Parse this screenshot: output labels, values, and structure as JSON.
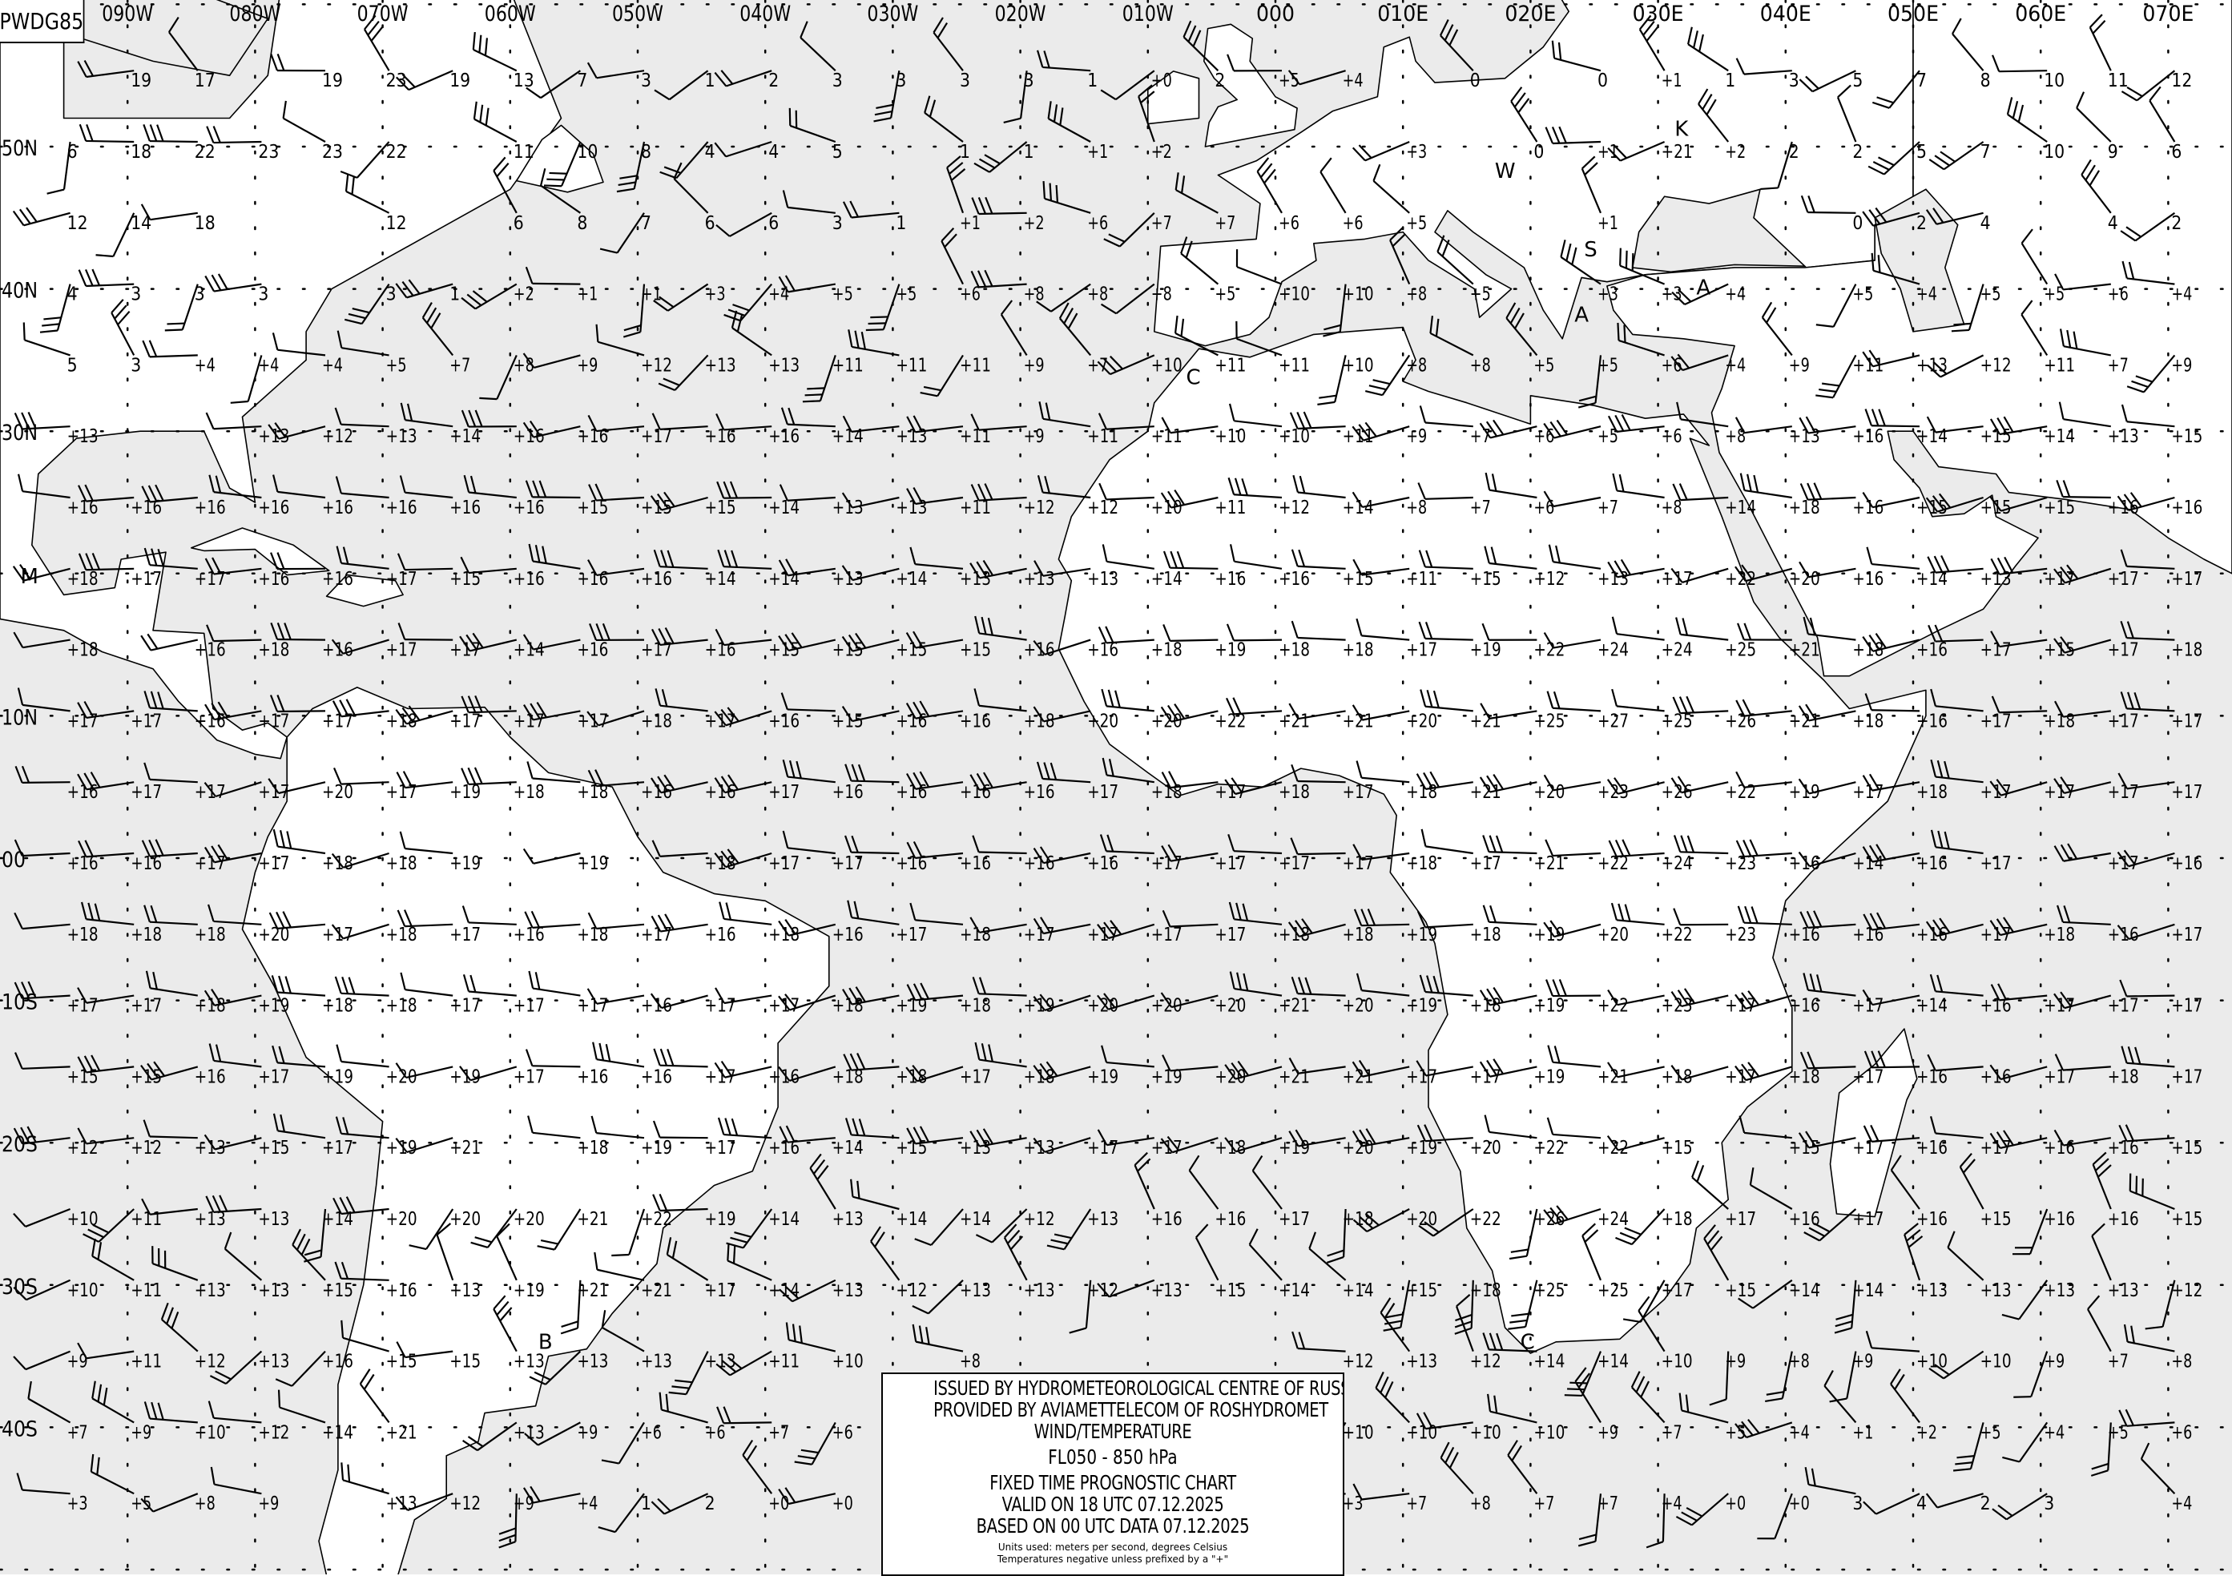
{
  "header": {
    "chart_id": "PWDG85"
  },
  "legend": {
    "line1": "ISSUED BY HYDROMETEOROLOGICAL CENTRE OF RUSSIA",
    "line2": "PROVIDED BY AVIAMETTELECOM OF ROSHYDROMET",
    "line3": "WIND/TEMPERATURE",
    "level": "FL050 - 850 hPa",
    "line5": "FIXED TIME PROGNOSTIC CHART",
    "valid": "VALID ON 18 UTC 07.12.2025",
    "based": "BASED ON 00 UTC DATA 07.12.2025",
    "units": "Units used: meters per second, degrees Celsius",
    "note": "Temperatures negative unless prefixed by a \"+\""
  },
  "colors": {
    "ocean": "#ebebeb",
    "land": "#ffffff",
    "lines": "#000000"
  },
  "lon_labels": [
    {
      "lon": -90,
      "text": "090W"
    },
    {
      "lon": -80,
      "text": "080W"
    },
    {
      "lon": -70,
      "text": "070W"
    },
    {
      "lon": -60,
      "text": "060W"
    },
    {
      "lon": -50,
      "text": "050W"
    },
    {
      "lon": -40,
      "text": "040W"
    },
    {
      "lon": -30,
      "text": "030W"
    },
    {
      "lon": -20,
      "text": "020W"
    },
    {
      "lon": -10,
      "text": "010W"
    },
    {
      "lon": 0,
      "text": "000"
    },
    {
      "lon": 10,
      "text": "010E"
    },
    {
      "lon": 20,
      "text": "020E"
    },
    {
      "lon": 30,
      "text": "030E"
    },
    {
      "lon": 40,
      "text": "040E"
    },
    {
      "lon": 50,
      "text": "050E"
    },
    {
      "lon": 60,
      "text": "060E"
    },
    {
      "lon": 70,
      "text": "070E"
    }
  ],
  "lat_labels": [
    {
      "lat": 50,
      "text": "50N"
    },
    {
      "lat": 40,
      "text": "40N"
    },
    {
      "lat": 30,
      "text": "30N"
    },
    {
      "lat": 10,
      "text": "10N"
    },
    {
      "lat": 0,
      "text": "00"
    },
    {
      "lat": -10,
      "text": "10S"
    },
    {
      "lat": -20,
      "text": "20S"
    },
    {
      "lat": -30,
      "text": "30S"
    },
    {
      "lat": -40,
      "text": "40S"
    }
  ],
  "pressure_centres": [
    {
      "lat": 19.3,
      "lon": -98.4,
      "text": "M"
    },
    {
      "lat": 33.3,
      "lon": -7,
      "text": "C"
    },
    {
      "lat": -34.5,
      "lon": 19.2,
      "text": "C"
    },
    {
      "lat": -35.4,
      "lon": -57.8,
      "text": "B"
    },
    {
      "lat": 42.3,
      "lon": 24.2,
      "text": "S"
    },
    {
      "lat": 39.6,
      "lon": 33,
      "text": "A"
    },
    {
      "lat": 37.7,
      "lon": 24.2,
      "text": "A"
    },
    {
      "lat": 47.8,
      "lon": 17.2,
      "text": "W"
    },
    {
      "lat": 50.3,
      "lon": 31.3,
      "text": "K"
    }
  ],
  "temperature_grid": {
    "lon_start": -95,
    "lon_step": 5,
    "rows": [
      {
        "lat": 55,
        "t": [
          "",
          "19",
          "17",
          "",
          "19",
          "23",
          "19",
          "13",
          "7",
          "3",
          "1",
          "2",
          "3",
          "3",
          "3",
          "3",
          "1",
          "+0",
          "2",
          "+5",
          "+4",
          "",
          "0",
          "",
          "0",
          "+1",
          "1",
          "3",
          "5",
          "7",
          "8",
          "10",
          "11",
          "12"
        ]
      },
      {
        "lat": 50,
        "t": [
          "6",
          "18",
          "22",
          "23",
          "23",
          "22",
          "",
          "11",
          "10",
          "8",
          "4",
          "4",
          "5",
          "",
          "1",
          "1",
          "+1",
          "+2",
          "",
          "",
          "",
          "+3",
          "",
          "0",
          "+1",
          "+21",
          "+2",
          "2",
          "2",
          "5",
          "7",
          "10",
          "9",
          "6"
        ]
      },
      {
        "lat": 45,
        "t": [
          "12",
          "14",
          "18",
          "",
          "",
          "12",
          "",
          "6",
          "8",
          "7",
          "6",
          "6",
          "3",
          "1",
          "+1",
          "+2",
          "+6",
          "+7",
          "+7",
          "+6",
          "+6",
          "+5",
          "",
          "",
          "+1",
          "",
          "",
          "",
          "0",
          "2",
          "4",
          "",
          "4",
          "2"
        ]
      },
      {
        "lat": 40,
        "t": [
          "4",
          "3",
          "3",
          "3",
          "",
          "3",
          "1",
          "+2",
          "+1",
          "+1",
          "+3",
          "+4",
          "+5",
          "+5",
          "+6",
          "+8",
          "+8",
          "+8",
          "+5",
          "+10",
          "+10",
          "+8",
          "+5",
          "",
          "+3",
          "+3",
          "+4",
          "",
          "+5",
          "+4",
          "+5",
          "+5",
          "+6",
          "+4"
        ]
      },
      {
        "lat": 35,
        "t": [
          "5",
          "3",
          "+4",
          "+4",
          "+4",
          "+5",
          "+7",
          "+8",
          "+9",
          "+12",
          "+13",
          "+13",
          "+11",
          "+11",
          "+11",
          "+9",
          "+7",
          "+10",
          "+11",
          "+11",
          "+10",
          "+8",
          "+8",
          "+5",
          "+5",
          "+6",
          "+4",
          "+9",
          "+11",
          "+13",
          "+12",
          "+11",
          "+7",
          "+9"
        ]
      },
      {
        "lat": 30,
        "t": [
          "+13",
          "",
          "",
          "+13",
          "+12",
          "+13",
          "+14",
          "+16",
          "+16",
          "+17",
          "+16",
          "+16",
          "+14",
          "+13",
          "+11",
          "+9",
          "+11",
          "+11",
          "+10",
          "+10",
          "+11",
          "+9",
          "+7",
          "+6",
          "+5",
          "+6",
          "+8",
          "+13",
          "+16",
          "+14",
          "+15",
          "+14",
          "+13",
          "+15"
        ]
      },
      {
        "lat": 25,
        "t": [
          "+16",
          "+16",
          "+16",
          "+16",
          "+16",
          "+16",
          "+16",
          "+16",
          "+15",
          "+15",
          "+15",
          "+14",
          "+13",
          "+13",
          "+11",
          "+12",
          "+12",
          "+10",
          "+11",
          "+12",
          "+14",
          "+8",
          "+7",
          "+6",
          "+7",
          "+8",
          "+14",
          "+18",
          "+16",
          "+15",
          "+15",
          "+15",
          "+16",
          "+16"
        ]
      },
      {
        "lat": 20,
        "t": [
          "+18",
          "+17",
          "+17",
          "+16",
          "+16",
          "+17",
          "+15",
          "+16",
          "+16",
          "+16",
          "+14",
          "+14",
          "+13",
          "+14",
          "+13",
          "+13",
          "+13",
          "+14",
          "+16",
          "+16",
          "+15",
          "+11",
          "+15",
          "+12",
          "+13",
          "+17",
          "+22",
          "+20",
          "+16",
          "+14",
          "+13",
          "+17",
          "+17",
          "+17"
        ]
      },
      {
        "lat": 15,
        "t": [
          "+18",
          "",
          "+16",
          "+18",
          "+16",
          "+17",
          "+17",
          "+14",
          "+16",
          "+17",
          "+16",
          "+15",
          "+15",
          "+15",
          "+15",
          "+16",
          "+16",
          "+18",
          "+19",
          "+18",
          "+18",
          "+17",
          "+19",
          "+22",
          "+24",
          "+24",
          "+25",
          "+21",
          "+18",
          "+16",
          "+17",
          "+15",
          "+17",
          "+18"
        ]
      },
      {
        "lat": 10,
        "t": [
          "+17",
          "+17",
          "+16",
          "+17",
          "+17",
          "+18",
          "+17",
          "+17",
          "+17",
          "+18",
          "+17",
          "+16",
          "+15",
          "+16",
          "+16",
          "+18",
          "+20",
          "+20",
          "+22",
          "+21",
          "+21",
          "+20",
          "+21",
          "+25",
          "+27",
          "+25",
          "+26",
          "+21",
          "+18",
          "+16",
          "+17",
          "+18",
          "+17",
          "+17"
        ]
      },
      {
        "lat": 5,
        "t": [
          "+16",
          "+17",
          "+17",
          "+17",
          "+20",
          "+17",
          "+19",
          "+18",
          "+18",
          "+16",
          "+16",
          "+17",
          "+16",
          "+16",
          "+16",
          "+16",
          "+17",
          "+18",
          "+17",
          "+18",
          "+17",
          "+18",
          "+21",
          "+20",
          "+23",
          "+26",
          "+22",
          "+19",
          "+17",
          "+18",
          "+17",
          "+17",
          "+17",
          "+17"
        ]
      },
      {
        "lat": 0,
        "t": [
          "+16",
          "+16",
          "+17",
          "+17",
          "+18",
          "+18",
          "+19",
          "",
          "+19",
          "",
          "+18",
          "+17",
          "+17",
          "+16",
          "+16",
          "+16",
          "+16",
          "+17",
          "+17",
          "+17",
          "+17",
          "+18",
          "+17",
          "+21",
          "+22",
          "+24",
          "+23",
          "+16",
          "+14",
          "+16",
          "+17",
          "",
          "+17",
          "+16"
        ]
      },
      {
        "lat": -5,
        "t": [
          "+18",
          "+18",
          "+18",
          "+20",
          "+17",
          "+18",
          "+17",
          "+16",
          "+18",
          "+17",
          "+16",
          "+18",
          "+16",
          "+17",
          "+18",
          "+17",
          "+17",
          "+17",
          "+17",
          "+18",
          "+18",
          "+19",
          "+18",
          "+19",
          "+20",
          "+22",
          "+23",
          "+16",
          "+16",
          "+16",
          "+17",
          "+18",
          "+16",
          "+17"
        ]
      },
      {
        "lat": -10,
        "t": [
          "+17",
          "+17",
          "+18",
          "+19",
          "+18",
          "+18",
          "+17",
          "+17",
          "+17",
          "+16",
          "+17",
          "+17",
          "+18",
          "+19",
          "+18",
          "+19",
          "+20",
          "+20",
          "+20",
          "+21",
          "+20",
          "+19",
          "+18",
          "+19",
          "+22",
          "+23",
          "+17",
          "+16",
          "+17",
          "+14",
          "+16",
          "+17",
          "+17",
          "+17"
        ]
      },
      {
        "lat": -15,
        "t": [
          "+15",
          "+15",
          "+16",
          "+17",
          "+19",
          "+20",
          "+19",
          "+17",
          "+16",
          "+16",
          "+17",
          "+16",
          "+18",
          "+18",
          "+17",
          "+18",
          "+19",
          "+19",
          "+20",
          "+21",
          "+21",
          "+17",
          "+17",
          "+19",
          "+21",
          "+18",
          "+17",
          "+18",
          "+17",
          "+16",
          "+16",
          "+17",
          "+18",
          "+17"
        ]
      },
      {
        "lat": -20,
        "t": [
          "+12",
          "+12",
          "+13",
          "+15",
          "+17",
          "+19",
          "+21",
          "",
          "+18",
          "+19",
          "+17",
          "+16",
          "+14",
          "+15",
          "+13",
          "+13",
          "+17",
          "+17",
          "+18",
          "+19",
          "+20",
          "+19",
          "+20",
          "+22",
          "+22",
          "+15",
          "",
          "+15",
          "+17",
          "+16",
          "+17",
          "+16",
          "+16",
          "+15"
        ]
      },
      {
        "lat": -25,
        "t": [
          "+10",
          "+11",
          "+13",
          "+13",
          "+14",
          "+20",
          "+20",
          "+20",
          "+21",
          "+22",
          "+19",
          "+14",
          "+13",
          "+14",
          "+14",
          "+12",
          "+13",
          "+16",
          "+16",
          "+17",
          "+18",
          "+20",
          "+22",
          "+26",
          "+24",
          "+18",
          "+17",
          "+16",
          "+17",
          "+16",
          "+15",
          "+16",
          "+16",
          "+15"
        ]
      },
      {
        "lat": -30,
        "t": [
          "+10",
          "+11",
          "+13",
          "+13",
          "+15",
          "+16",
          "+13",
          "+19",
          "+21",
          "+21",
          "+17",
          "+14",
          "+13",
          "+12",
          "+13",
          "+13",
          "+12",
          "+13",
          "+15",
          "+14",
          "+14",
          "+15",
          "+18",
          "+25",
          "+25",
          "+17",
          "+15",
          "+14",
          "+14",
          "+13",
          "+13",
          "+13",
          "+13",
          "+12"
        ]
      },
      {
        "lat": -35,
        "t": [
          "+9",
          "+11",
          "+12",
          "+13",
          "+16",
          "+15",
          "+15",
          "+13",
          "+13",
          "+13",
          "+13",
          "+11",
          "+10",
          "",
          "+8",
          "",
          "",
          "",
          "",
          "",
          "+12",
          "+13",
          "+12",
          "+14",
          "+14",
          "+10",
          "+9",
          "+8",
          "+9",
          "+10",
          "+10",
          "+9",
          "+7",
          "+8"
        ]
      },
      {
        "lat": -40,
        "t": [
          "+7",
          "+9",
          "+10",
          "+12",
          "+14",
          "+21",
          "",
          "+13",
          "+9",
          "+6",
          "+6",
          "+7",
          "+6",
          "",
          "",
          "",
          "",
          "",
          "",
          "",
          "+10",
          "+10",
          "+10",
          "+10",
          "+9",
          "+7",
          "+5",
          "+4",
          "+1",
          "+2",
          "+5",
          "+4",
          "+5",
          "+6"
        ]
      },
      {
        "lat": -45,
        "t": [
          "+3",
          "+5",
          "+8",
          "+9",
          "",
          "+13",
          "+12",
          "+9",
          "+4",
          "1",
          "2",
          "+0",
          "+0",
          "",
          "",
          "",
          "",
          "",
          "",
          "",
          "+3",
          "+7",
          "+8",
          "+7",
          "+7",
          "+4",
          "+0",
          "+0",
          "3",
          "4",
          "2",
          "3",
          "",
          "+4"
        ]
      }
    ]
  }
}
